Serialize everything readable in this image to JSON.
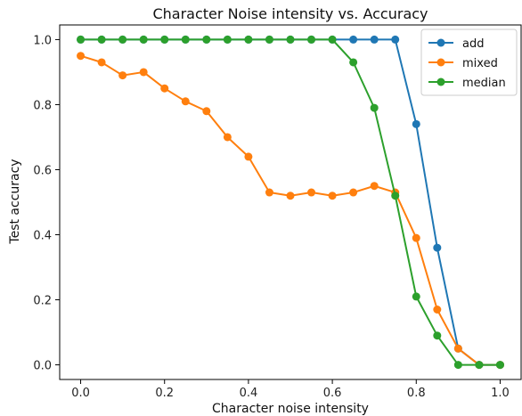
{
  "chart_data": {
    "type": "line",
    "title": "Character Noise intensity vs. Accuracy",
    "xlabel": "Character noise intensity",
    "ylabel": "Test accuracy",
    "xlim": [
      -0.05,
      1.05
    ],
    "ylim": [
      -0.045,
      1.045
    ],
    "xticks": [
      0.0,
      0.2,
      0.4,
      0.6,
      0.8,
      1.0
    ],
    "xtick_labels": [
      "0.0",
      "0.2",
      "0.4",
      "0.6",
      "0.8",
      "1.0"
    ],
    "yticks": [
      0.0,
      0.2,
      0.4,
      0.6,
      0.8,
      1.0
    ],
    "ytick_labels": [
      "0.0",
      "0.2",
      "0.4",
      "0.6",
      "0.8",
      "1.0"
    ],
    "grid": false,
    "legend_position": "top-right",
    "x": [
      0.0,
      0.05,
      0.1,
      0.15,
      0.2,
      0.25,
      0.3,
      0.35,
      0.4,
      0.45,
      0.5,
      0.55,
      0.6,
      0.65,
      0.7,
      0.75,
      0.8,
      0.85,
      0.9,
      0.95,
      1.0
    ],
    "series": [
      {
        "name": "add",
        "color": "#1f77b4",
        "values": [
          1.0,
          1.0,
          1.0,
          1.0,
          1.0,
          1.0,
          1.0,
          1.0,
          1.0,
          1.0,
          1.0,
          1.0,
          1.0,
          1.0,
          1.0,
          1.0,
          0.74,
          0.36,
          0.05,
          0.0,
          0.0
        ]
      },
      {
        "name": "mixed",
        "color": "#ff7f0e",
        "values": [
          0.95,
          0.93,
          0.89,
          0.9,
          0.85,
          0.81,
          0.78,
          0.7,
          0.64,
          0.53,
          0.52,
          0.53,
          0.52,
          0.53,
          0.55,
          0.53,
          0.39,
          0.17,
          0.05,
          0.0,
          0.0
        ]
      },
      {
        "name": "median",
        "color": "#2ca02c",
        "values": [
          1.0,
          1.0,
          1.0,
          1.0,
          1.0,
          1.0,
          1.0,
          1.0,
          1.0,
          1.0,
          1.0,
          1.0,
          1.0,
          0.93,
          0.79,
          0.52,
          0.21,
          0.09,
          0.0,
          0.0,
          0.0
        ]
      }
    ]
  }
}
